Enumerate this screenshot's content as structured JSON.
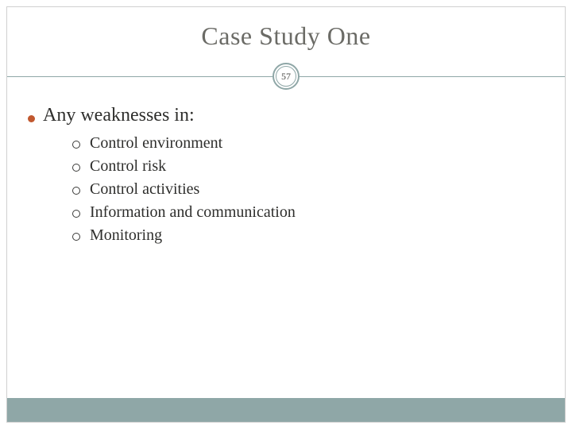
{
  "colors": {
    "title_text": "#6b6b66",
    "body_text": "#2e2e2c",
    "rule_line": "#8fa7a7",
    "footer_band": "#8fa7a7",
    "bullet_dot": "#c1582f",
    "bullet_circle_stroke": "#3a3a38",
    "background": "#ffffff",
    "border": "#d0d0d0"
  },
  "typography": {
    "family": "Georgia, serif",
    "title_pt": 32,
    "lvl1_pt": 24,
    "lvl2_pt": 20,
    "pagenum_pt": 12
  },
  "slide": {
    "title": "Case Study One",
    "page_number": "57",
    "heading": "Any weaknesses in:",
    "sub_items": [
      "Control environment",
      "Control risk",
      "Control activities",
      "Information and communication",
      "Monitoring"
    ]
  }
}
